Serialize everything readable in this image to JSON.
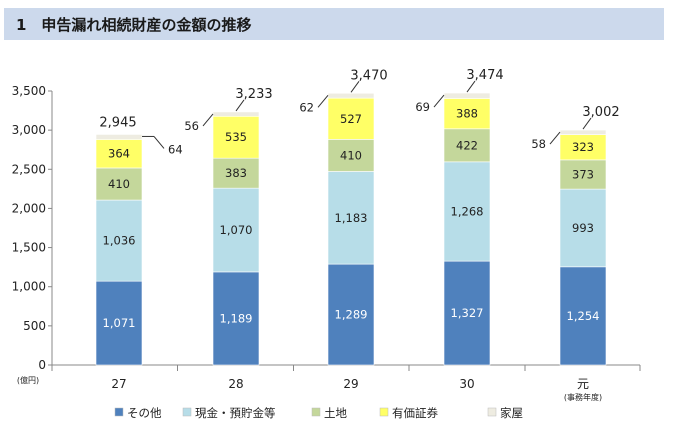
{
  "header": {
    "title": "1　申告漏れ相続財産の金額の推移"
  },
  "chart_data": {
    "type": "stacked-bar",
    "y_unit": "(億円)",
    "x_unit": "(事務年度)",
    "ylim": [
      0,
      3500
    ],
    "yticks": [
      0,
      500,
      1000,
      1500,
      2000,
      2500,
      3000,
      3500
    ],
    "ytick_labels": [
      "0",
      "500",
      "1,000",
      "1,500",
      "2,000",
      "2,500",
      "3,000",
      "3,500"
    ],
    "grid": false,
    "legend_position": "bottom",
    "categories": [
      "27",
      "28",
      "29",
      "30",
      "元"
    ],
    "series": [
      {
        "name": "その他",
        "color": "#4f81bd",
        "values": [
          1071,
          1189,
          1289,
          1327,
          1254
        ],
        "labels": [
          "1,071",
          "1,189",
          "1,289",
          "1,327",
          "1,254"
        ]
      },
      {
        "name": "現金・預貯金等",
        "color": "#b7dde8",
        "values": [
          1036,
          1070,
          1183,
          1268,
          993
        ],
        "labels": [
          "1,036",
          "1,070",
          "1,183",
          "1,268",
          "993"
        ]
      },
      {
        "name": "土地",
        "color": "#c4d79b",
        "values": [
          410,
          383,
          410,
          422,
          373
        ],
        "labels": [
          "410",
          "383",
          "410",
          "422",
          "373"
        ]
      },
      {
        "name": "有価証券",
        "color": "#ffff66",
        "values": [
          364,
          535,
          527,
          388,
          323
        ],
        "labels": [
          "364",
          "535",
          "527",
          "388",
          "323"
        ]
      },
      {
        "name": "家屋",
        "color": "#eeece1",
        "values": [
          64,
          56,
          62,
          69,
          58
        ],
        "labels": [
          "64",
          "56",
          "62",
          "69",
          "58"
        ]
      }
    ],
    "totals": [
      2945,
      3233,
      3470,
      3474,
      3002
    ],
    "total_labels": [
      "2,945",
      "3,233",
      "3,470",
      "3,474",
      "3,002"
    ]
  }
}
